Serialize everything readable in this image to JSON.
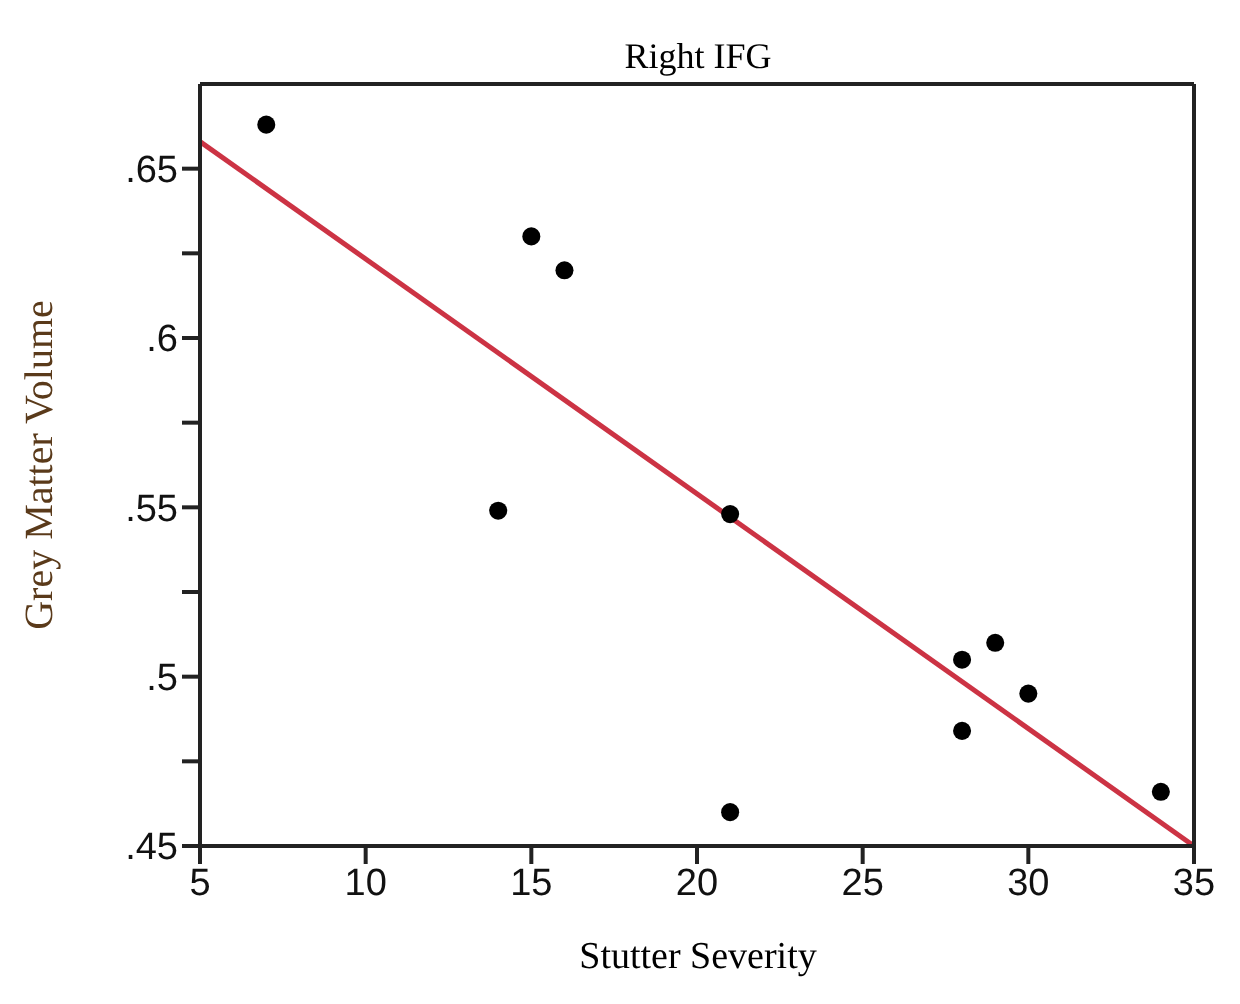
{
  "chart_data": {
    "type": "scatter",
    "title": "Right IFG",
    "xlabel": "Stutter Severity",
    "ylabel": "Grey Matter Volume",
    "xlim": [
      5,
      35
    ],
    "xticks": [
      5,
      10,
      15,
      20,
      25,
      30,
      35
    ],
    "ylim": [
      0.45,
      0.675
    ],
    "yticks": [
      {
        "value": 0.45,
        "label": ".45"
      },
      {
        "value": 0.475,
        "label": null
      },
      {
        "value": 0.5,
        "label": ".5"
      },
      {
        "value": 0.525,
        "label": null
      },
      {
        "value": 0.55,
        "label": ".55"
      },
      {
        "value": 0.575,
        "label": null
      },
      {
        "value": 0.6,
        "label": ".6"
      },
      {
        "value": 0.625,
        "label": null
      },
      {
        "value": 0.65,
        "label": ".65"
      }
    ],
    "grid": false,
    "marker": "circle",
    "series": [
      {
        "color": "#000000",
        "x": [
          7,
          15,
          16,
          14,
          21,
          21,
          28,
          28,
          29,
          30,
          34
        ],
        "values": [
          0.663,
          0.63,
          0.62,
          0.549,
          0.548,
          0.46,
          0.505,
          0.484,
          0.51,
          0.495,
          0.466
        ]
      },
      {
        "type": "line",
        "marker": "none",
        "color": "#cc3344",
        "x": [
          5,
          35
        ],
        "values": [
          0.658,
          0.45
        ]
      }
    ]
  }
}
